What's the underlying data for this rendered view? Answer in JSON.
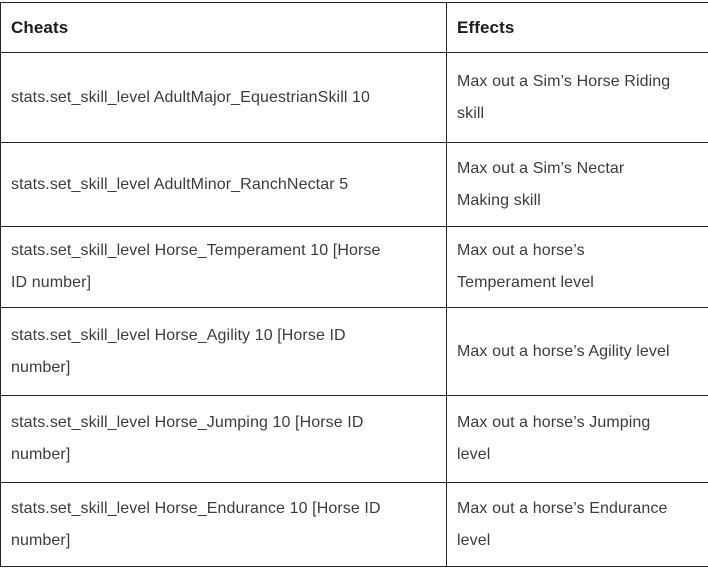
{
  "colors": {
    "border": "#242424",
    "header_text": "#1c1c1c",
    "body_text": "#3c3c3c",
    "background": "#ffffff"
  },
  "table": {
    "header": {
      "cheats": "Cheats",
      "effects": "Effects"
    },
    "rows": [
      {
        "cheat": "stats.set_skill_level AdultMajor_EquestrianSkill 10",
        "effect": "Max out a Sim’s Horse Riding\nskill"
      },
      {
        "cheat": "stats.set_skill_level AdultMinor_RanchNectar 5",
        "effect": "Max out a Sim’s Nectar\nMaking skill"
      },
      {
        "cheat": "stats.set_skill_level Horse_Temperament 10 [Horse\nID number]",
        "effect": "Max out a horse’s\nTemperament level"
      },
      {
        "cheat": "stats.set_skill_level Horse_Agility 10 [Horse ID\nnumber]",
        "effect": "Max out a horse’s Agility level"
      },
      {
        "cheat": "stats.set_skill_level Horse_Jumping 10 [Horse ID\nnumber]",
        "effect": "Max out a horse’s Jumping\nlevel"
      },
      {
        "cheat": "stats.set_skill_level Horse_Endurance 10 [Horse ID\nnumber]",
        "effect": "Max out a horse’s Endurance\nlevel"
      }
    ]
  }
}
